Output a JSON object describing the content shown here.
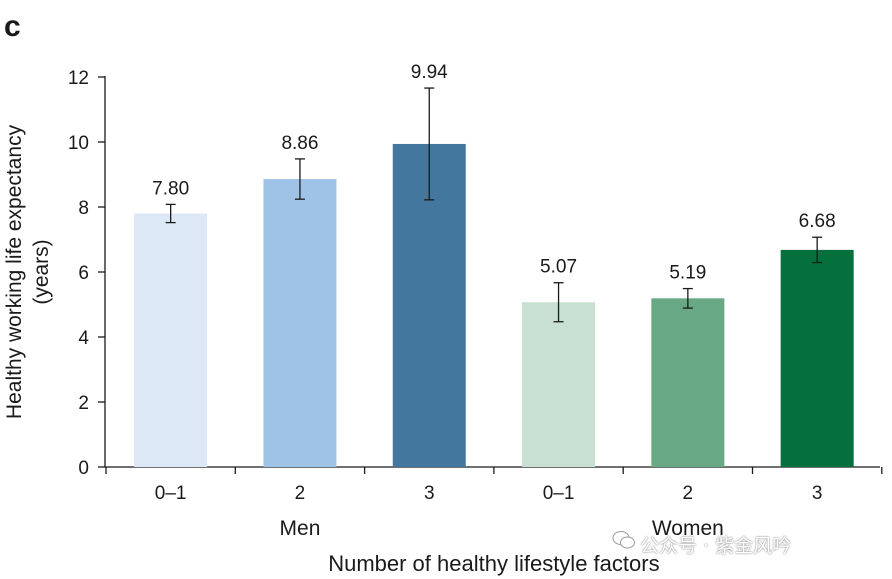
{
  "panel_label": "c",
  "watermark": "公众号 · 紫金风吟",
  "chart_data": {
    "type": "bar",
    "title": "",
    "xlabel": "Number of healthy lifestyle factors",
    "ylabel_lines": [
      "Healthy working life expectancy",
      "(years)"
    ],
    "ylim": [
      0,
      12
    ],
    "yticks": [
      "0",
      "2",
      "4",
      "6",
      "8",
      "10",
      "12"
    ],
    "groups": [
      {
        "name": "Men",
        "categories": [
          "0–1",
          "2",
          "3"
        ]
      },
      {
        "name": "Women",
        "categories": [
          "0–1",
          "2",
          "3"
        ]
      }
    ],
    "bars": [
      {
        "group": "Men",
        "category": "0–1",
        "value": 7.8,
        "label": "7.80",
        "err_low": 7.52,
        "err_high": 8.08,
        "color": "#dce8f5"
      },
      {
        "group": "Men",
        "category": "2",
        "value": 8.86,
        "label": "8.86",
        "err_low": 8.24,
        "err_high": 9.48,
        "color": "#9fc3e6"
      },
      {
        "group": "Men",
        "category": "3",
        "value": 9.94,
        "label": "9.94",
        "err_low": 8.22,
        "err_high": 11.66,
        "color": "#44779e"
      },
      {
        "group": "Women",
        "category": "0–1",
        "value": 5.07,
        "label": "5.07",
        "err_low": 4.47,
        "err_high": 5.67,
        "color": "#c7e0d1"
      },
      {
        "group": "Women",
        "category": "2",
        "value": 5.19,
        "label": "5.19",
        "err_low": 4.89,
        "err_high": 5.49,
        "color": "#68a884"
      },
      {
        "group": "Women",
        "category": "3",
        "value": 6.68,
        "label": "6.68",
        "err_low": 6.29,
        "err_high": 7.07,
        "color": "#05703c"
      }
    ],
    "grid": false,
    "legend": "none"
  }
}
